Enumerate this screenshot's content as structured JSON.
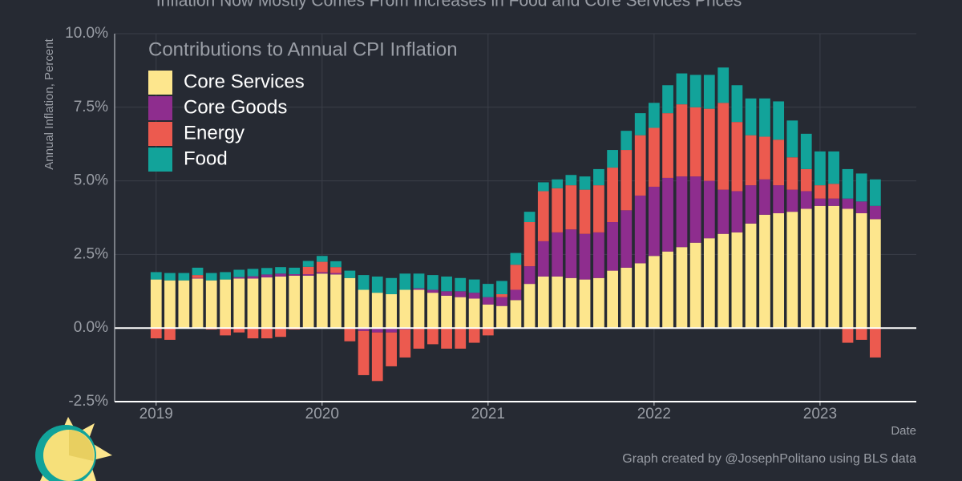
{
  "chart_data": {
    "type": "stacked_bar",
    "title": "Inflation Now Mostly Comes From Increases in Food and Core Services Prices",
    "ylabel": "Annual Inflation, Percent",
    "xlabel": "Date",
    "legend_title": "Contributions to Annual CPI Inflation",
    "caption": "Graph created by @JosephPolitano using BLS data",
    "legend": "upper left",
    "grid": true,
    "x": [
      2019,
      2019.083,
      2019.167,
      2019.25,
      2019.333,
      2019.417,
      2019.5,
      2019.583,
      2019.667,
      2019.75,
      2019.833,
      2019.917,
      2020,
      2020.083,
      2020.167,
      2020.25,
      2020.333,
      2020.417,
      2020.5,
      2020.583,
      2020.667,
      2020.75,
      2020.833,
      2020.917,
      2021,
      2021.083,
      2021.167,
      2021.25,
      2021.333,
      2021.417,
      2021.5,
      2021.583,
      2021.667,
      2021.75,
      2021.833,
      2021.917,
      2022,
      2022.083,
      2022.167,
      2022.25,
      2022.333,
      2022.417,
      2022.5,
      2022.583,
      2022.667,
      2022.75,
      2022.833,
      2022.917,
      2023,
      2023.083,
      2023.167,
      2023.25,
      2023.333
    ],
    "xlim": [
      2018.75,
      2023.58
    ],
    "xticks": [
      2019,
      2020,
      2021,
      2022,
      2023
    ],
    "ylim": [
      -2.5,
      10
    ],
    "yticks": [
      {
        "value": -2.5,
        "label": "-2.5%"
      },
      {
        "value": 0,
        "label": "0.0%"
      },
      {
        "value": 2.5,
        "label": "2.5%"
      },
      {
        "value": 5,
        "label": "5.0%"
      },
      {
        "value": 7.5,
        "label": "7.5%"
      },
      {
        "value": 10,
        "label": "10.0%"
      }
    ],
    "series": [
      {
        "name": "Core Services",
        "color": "#fde68d",
        "values": [
          1.65,
          1.62,
          1.62,
          1.68,
          1.62,
          1.65,
          1.68,
          1.68,
          1.72,
          1.75,
          1.78,
          1.78,
          1.85,
          1.82,
          1.7,
          1.3,
          1.2,
          1.15,
          1.3,
          1.3,
          1.2,
          1.1,
          1.05,
          1.0,
          0.8,
          0.75,
          0.95,
          1.5,
          1.75,
          1.75,
          1.7,
          1.65,
          1.7,
          1.95,
          2.05,
          2.2,
          2.45,
          2.6,
          2.75,
          2.9,
          3.05,
          3.2,
          3.25,
          3.55,
          3.85,
          3.9,
          3.95,
          4.05,
          4.15,
          4.15,
          4.05,
          3.9,
          3.7
        ]
      },
      {
        "name": "Core Goods",
        "color": "#8e2d8e",
        "values": [
          0,
          0,
          0,
          0.02,
          0,
          0,
          0.05,
          0.08,
          0.1,
          0.1,
          0.05,
          0.05,
          0.05,
          0.05,
          0,
          -0.1,
          -0.15,
          -0.15,
          -0.05,
          0.05,
          0.1,
          0.15,
          0.2,
          0.2,
          0.25,
          0.3,
          0.35,
          0.6,
          1.2,
          1.5,
          1.65,
          1.55,
          1.55,
          1.65,
          1.95,
          2.3,
          2.35,
          2.5,
          2.4,
          2.25,
          1.95,
          1.5,
          1.4,
          1.3,
          1.2,
          0.95,
          0.75,
          0.6,
          0.25,
          0.25,
          0.35,
          0.4,
          0.45
        ]
      },
      {
        "name": "Energy",
        "color": "#ec5a4f",
        "values": [
          -0.35,
          -0.4,
          0,
          0.1,
          -0.05,
          -0.25,
          -0.15,
          -0.35,
          -0.35,
          -0.3,
          -0.05,
          0.25,
          0.35,
          0.2,
          -0.45,
          -1.5,
          -1.65,
          -1.15,
          -0.95,
          -0.7,
          -0.55,
          -0.7,
          -0.7,
          -0.5,
          -0.25,
          0.1,
          0.85,
          1.5,
          1.7,
          1.5,
          1.5,
          1.5,
          1.6,
          1.85,
          2.05,
          2.05,
          2.0,
          2.2,
          2.45,
          2.35,
          2.45,
          2.95,
          2.35,
          1.7,
          1.45,
          1.55,
          1.1,
          0.75,
          0.45,
          0.5,
          -0.5,
          -0.4,
          -1.0
        ]
      },
      {
        "name": "Food",
        "color": "#12a39a",
        "values": [
          0.25,
          0.25,
          0.25,
          0.25,
          0.25,
          0.25,
          0.25,
          0.25,
          0.22,
          0.22,
          0.22,
          0.2,
          0.2,
          0.2,
          0.25,
          0.5,
          0.55,
          0.55,
          0.55,
          0.5,
          0.5,
          0.5,
          0.45,
          0.45,
          0.45,
          0.45,
          0.4,
          0.35,
          0.3,
          0.3,
          0.35,
          0.45,
          0.55,
          0.6,
          0.65,
          0.75,
          0.85,
          0.95,
          1.05,
          1.1,
          1.15,
          1.2,
          1.25,
          1.25,
          1.3,
          1.3,
          1.25,
          1.2,
          1.15,
          1.1,
          1.0,
          0.95,
          0.9
        ]
      }
    ]
  }
}
